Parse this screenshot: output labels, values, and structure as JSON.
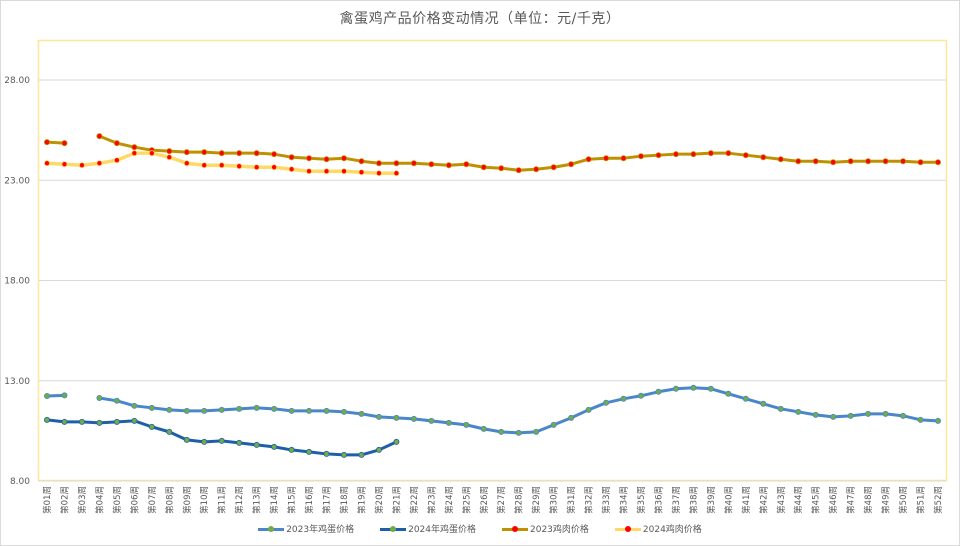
{
  "chart_data": {
    "type": "line",
    "title": "禽蛋鸡产品价格变动情况（单位：元/千克）",
    "xlabel": "",
    "ylabel": "",
    "ylim": [
      8,
      30
    ],
    "yticks": [
      "8.00",
      "13.00",
      "18.00",
      "23.00",
      "28.00"
    ],
    "grid": true,
    "legend_position": "bottom",
    "categories": [
      "第01周",
      "第02周",
      "第03周",
      "第04周",
      "第05周",
      "第06周",
      "第07周",
      "第08周",
      "第09周",
      "第10周",
      "第11周",
      "第12周",
      "第13周",
      "第14周",
      "第15周",
      "第16周",
      "第17周",
      "第18周",
      "第19周",
      "第20周",
      "第21周",
      "第22周",
      "第23周",
      "第24周",
      "第25周",
      "第26周",
      "第27周",
      "第28周",
      "第29周",
      "第30周",
      "第31周",
      "第32周",
      "第33周",
      "第34周",
      "第35周",
      "第36周",
      "第37周",
      "第38周",
      "第39周",
      "第40周",
      "第41周",
      "第42周",
      "第43周",
      "第44周",
      "第45周",
      "第46周",
      "第47周",
      "第48周",
      "第49周",
      "第50周",
      "第51周",
      "第52周"
    ],
    "series": [
      {
        "name": "2023年鸡蛋价格",
        "color": "#4a86c8",
        "marker_color": "#70ad47",
        "values": [
          12.24,
          12.27,
          null,
          12.14,
          12.0,
          11.75,
          11.65,
          11.55,
          11.5,
          11.5,
          11.55,
          11.6,
          11.65,
          11.6,
          11.5,
          11.5,
          11.5,
          11.45,
          11.35,
          11.2,
          11.15,
          11.1,
          11.0,
          10.9,
          10.8,
          10.6,
          10.45,
          10.4,
          10.45,
          10.8,
          11.15,
          11.55,
          11.9,
          12.1,
          12.25,
          12.45,
          12.6,
          12.65,
          12.6,
          12.35,
          12.1,
          11.85,
          11.6,
          11.45,
          11.3,
          11.2,
          11.25,
          11.35,
          11.35,
          11.25,
          11.05,
          11.0
        ]
      },
      {
        "name": "2024年鸡蛋价格",
        "color": "#1f5fa8",
        "marker_color": "#70ad47",
        "values": [
          11.05,
          10.95,
          10.95,
          10.9,
          10.95,
          11.0,
          10.7,
          10.45,
          10.05,
          9.95,
          10.0,
          9.9,
          9.8,
          9.7,
          9.55,
          9.45,
          9.35,
          9.3,
          9.3,
          9.55,
          9.95,
          null,
          null,
          null,
          null,
          null,
          null,
          null,
          null,
          null,
          null,
          null,
          null,
          null,
          null,
          null,
          null,
          null,
          null,
          null,
          null,
          null,
          null,
          null,
          null,
          null,
          null,
          null,
          null,
          null,
          null,
          null
        ]
      },
      {
        "name": "2023鸡肉价格",
        "color": "#bf9000",
        "marker_color": "#ff0000",
        "values": [
          24.9,
          24.85,
          null,
          25.2,
          24.85,
          24.65,
          24.5,
          24.45,
          24.4,
          24.4,
          24.35,
          24.35,
          24.35,
          24.3,
          24.15,
          24.1,
          24.05,
          24.1,
          23.95,
          23.85,
          23.85,
          23.85,
          23.8,
          23.75,
          23.8,
          23.65,
          23.6,
          23.5,
          23.55,
          23.65,
          23.8,
          24.05,
          24.1,
          24.1,
          24.2,
          24.25,
          24.3,
          24.3,
          24.35,
          24.35,
          24.25,
          24.15,
          24.05,
          23.95,
          23.95,
          23.9,
          23.95,
          23.95,
          23.95,
          23.95,
          23.9,
          23.9
        ]
      },
      {
        "name": "2024鸡肉价格",
        "color": "#ffd966",
        "marker_color": "#ff0000",
        "values": [
          23.85,
          23.8,
          23.75,
          23.85,
          24.0,
          24.35,
          24.35,
          24.15,
          23.85,
          23.75,
          23.75,
          23.7,
          23.65,
          23.65,
          23.55,
          23.45,
          23.45,
          23.45,
          23.4,
          23.35,
          23.35,
          null,
          null,
          null,
          null,
          null,
          null,
          null,
          null,
          null,
          null,
          null,
          null,
          null,
          null,
          null,
          null,
          null,
          null,
          null,
          null,
          null,
          null,
          null,
          null,
          null,
          null,
          null,
          null,
          null,
          null,
          null
        ]
      }
    ]
  },
  "colors": {
    "plot_border": "#ffe699",
    "grid": "#d9d9d9",
    "text": "#595959"
  }
}
